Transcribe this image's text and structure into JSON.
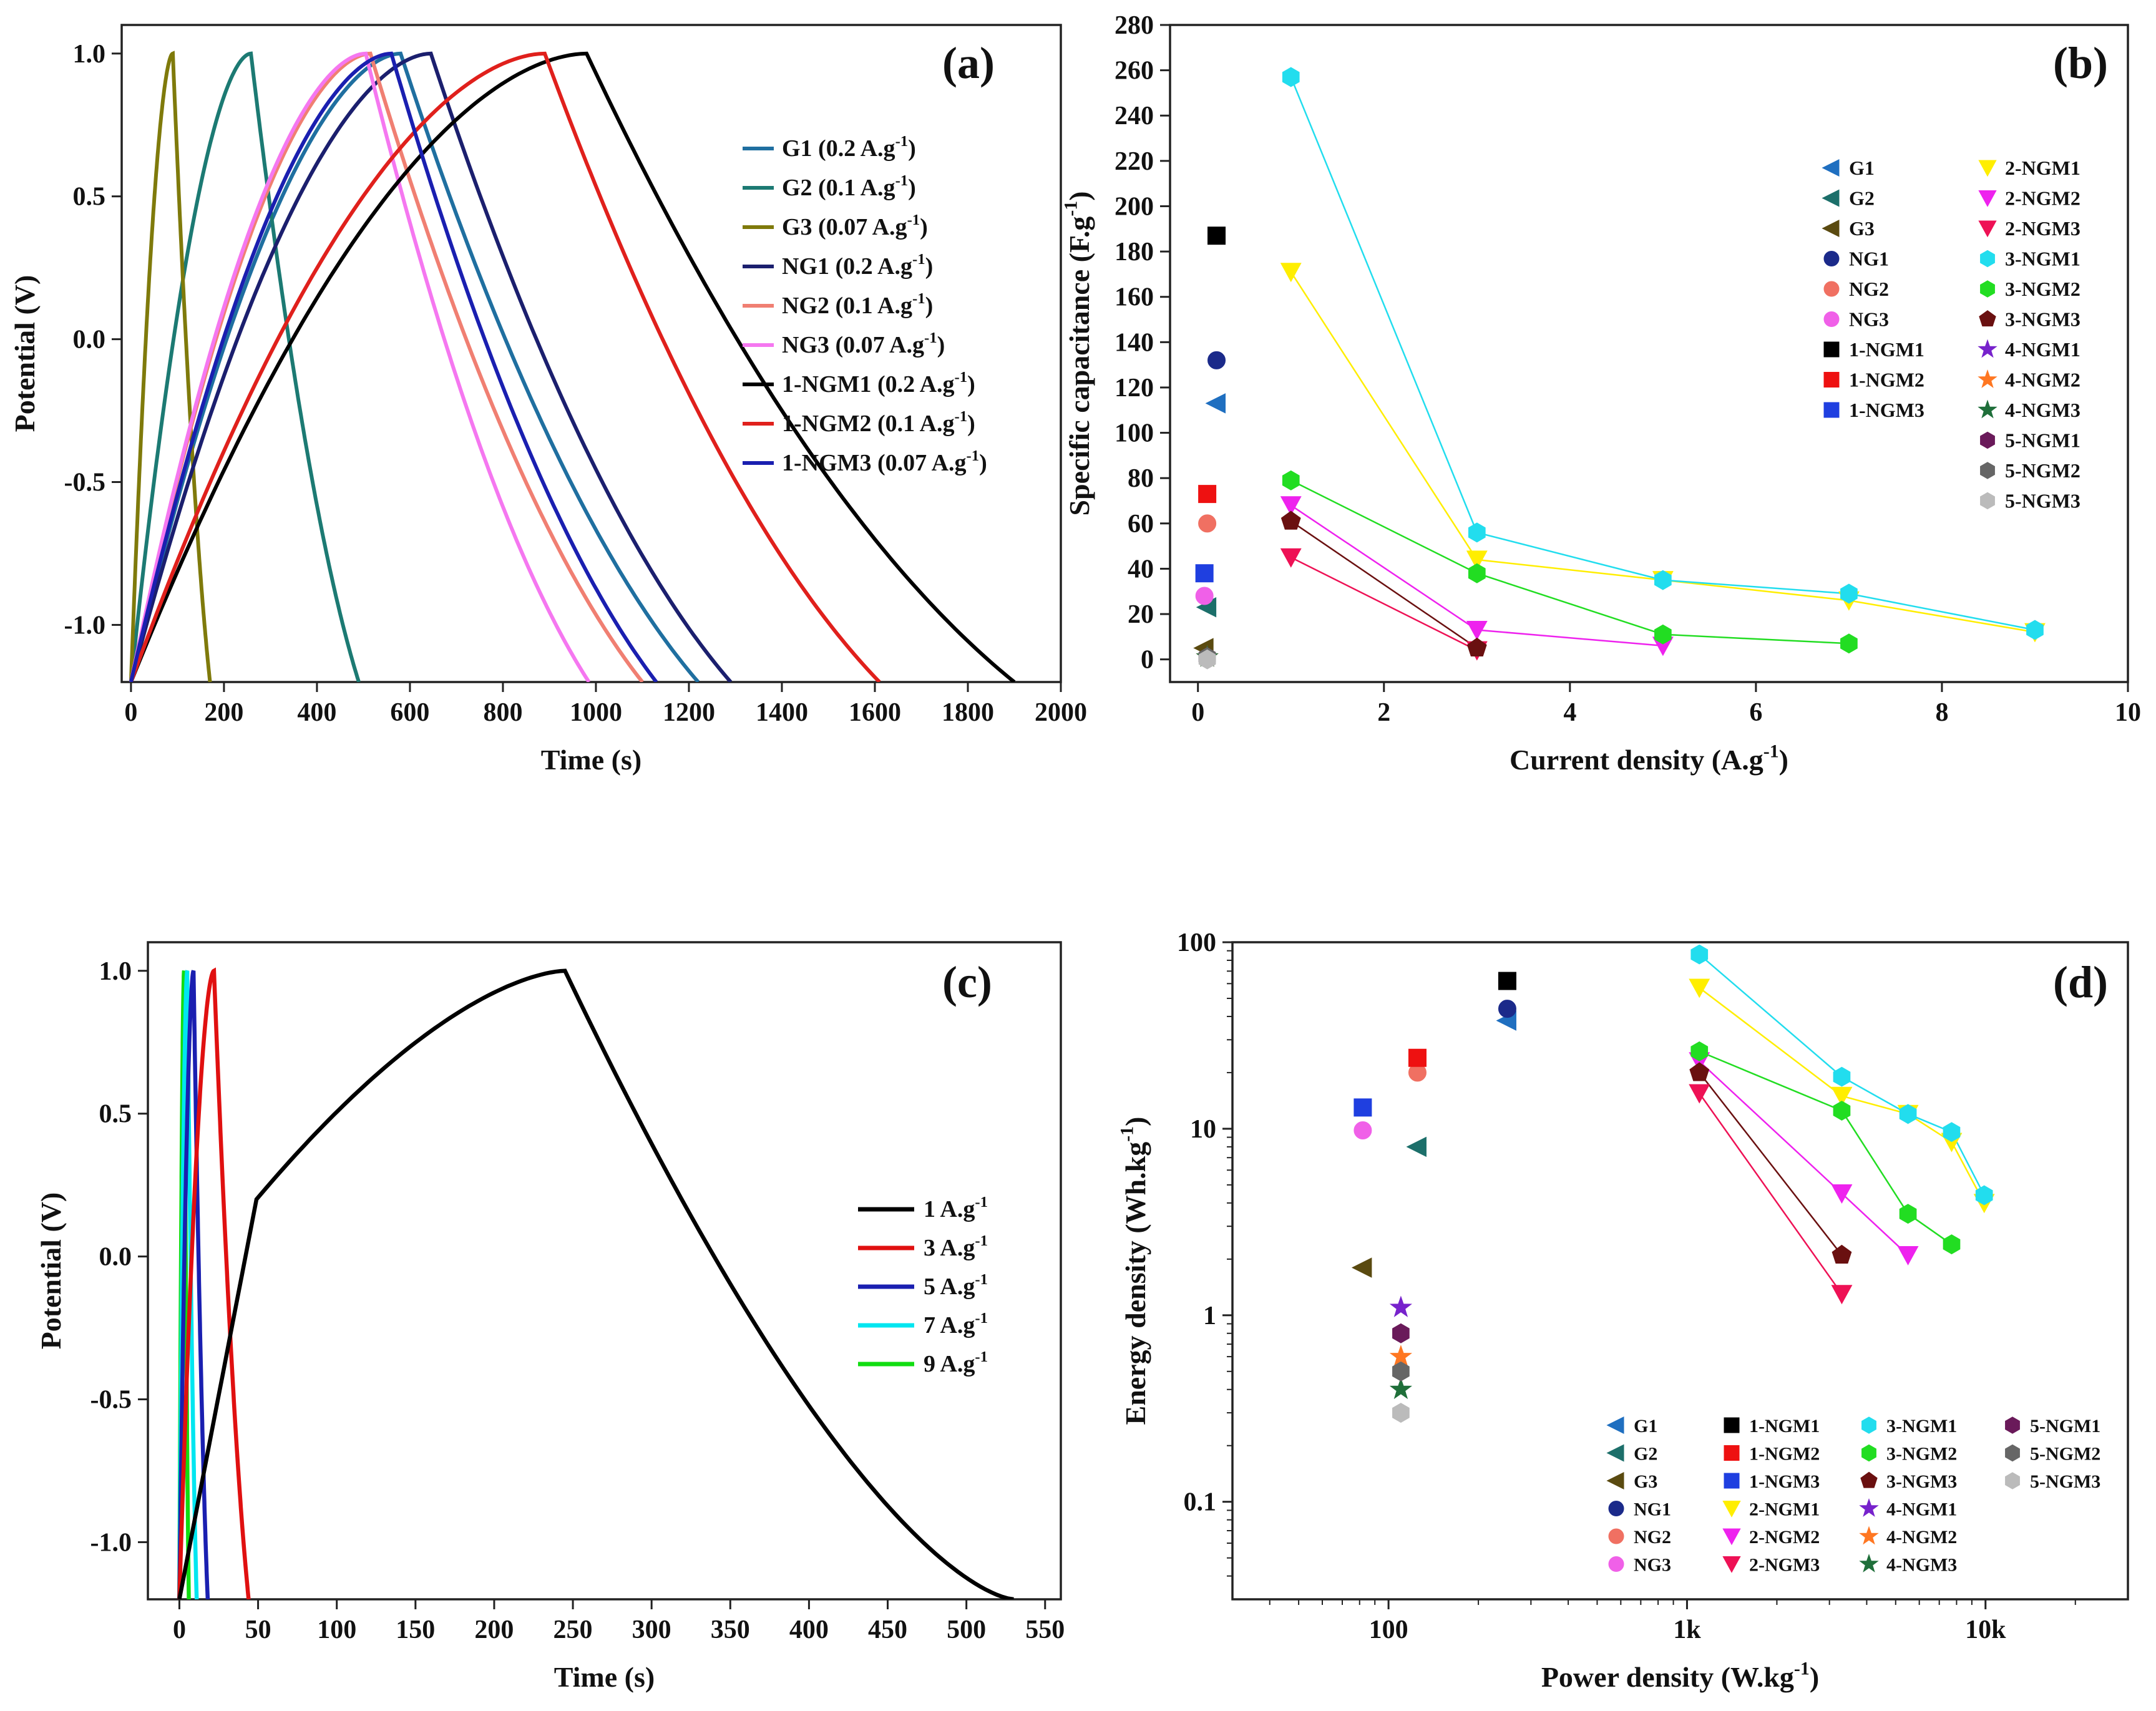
{
  "chart_data": [
    {
      "panel": "a",
      "type": "line",
      "xlabel": "Time (s)",
      "ylabel": "Potential (V)",
      "xlim": [
        -20,
        2000
      ],
      "ylim": [
        -1.2,
        1.1
      ],
      "xticks": [
        0,
        200,
        400,
        600,
        800,
        1000,
        1200,
        1400,
        1600,
        1800,
        2000
      ],
      "yticks": [
        -1.0,
        -0.5,
        0.0,
        0.5,
        1.0
      ],
      "ytick_labels": [
        "-1.0",
        "-0.5",
        "0.0",
        "0.5",
        "1.0"
      ],
      "legend_position": "center-right",
      "series": [
        {
          "name": "G1 (0.2 A.g",
          "legend_sup": "-1",
          "legend_tail": ")",
          "color": "#1f6fa0",
          "x": [
            0,
            580,
            1220
          ],
          "peak_y": 1.0
        },
        {
          "name": "G2 (0.1 A.g",
          "legend_sup": "-1",
          "legend_tail": ")",
          "color": "#1c7a73",
          "x": [
            0,
            258,
            490
          ],
          "peak_y": 1.0
        },
        {
          "name": "G3 (0.07 A.g",
          "legend_sup": "-1",
          "legend_tail": ")",
          "color": "#7f7a0b",
          "x": [
            0,
            90,
            170
          ],
          "peak_y": 1.0
        },
        {
          "name": "NG1 (0.2 A.g",
          "legend_sup": "-1",
          "legend_tail": ")",
          "color": "#1b1f6e",
          "x": [
            0,
            645,
            1290
          ],
          "peak_y": 1.0
        },
        {
          "name": "NG2 (0.1 A.g",
          "legend_sup": "-1",
          "legend_tail": ")",
          "color": "#f07f72",
          "x": [
            0,
            515,
            1100
          ],
          "peak_y": 1.0
        },
        {
          "name": "NG3 (0.07 A.g",
          "legend_sup": "-1",
          "legend_tail": ")",
          "color": "#f577f0",
          "x": [
            0,
            505,
            985
          ],
          "peak_y": 1.0
        },
        {
          "name": "1-NGM1 (0.2 A.g",
          "legend_sup": "-1",
          "legend_tail": ")",
          "color": "#000000",
          "x": [
            0,
            980,
            1900
          ],
          "peak_y": 1.0
        },
        {
          "name": "1-NGM2 (0.1 A.g",
          "legend_sup": "-1",
          "legend_tail": ")",
          "color": "#e0201c",
          "x": [
            0,
            890,
            1610
          ],
          "peak_y": 1.0
        },
        {
          "name": "1-NGM3 (0.07 A.g",
          "legend_sup": "-1",
          "legend_tail": ")",
          "color": "#1a1fb0",
          "x": [
            0,
            560,
            1130
          ],
          "peak_y": 1.0
        }
      ]
    },
    {
      "panel": "b",
      "type": "scatter",
      "xlabel": "Current density (A.g",
      "xlabel_sup": "-1",
      "xlabel_tail": ")",
      "ylabel": "Specific capacitance (F.g",
      "ylabel_sup": "-1",
      "ylabel_tail": ")",
      "xlim": [
        -0.3,
        10
      ],
      "ylim": [
        -10,
        280
      ],
      "xticks": [
        0,
        2,
        4,
        6,
        8,
        10
      ],
      "yticks": [
        0,
        20,
        40,
        60,
        80,
        100,
        120,
        140,
        160,
        180,
        200,
        220,
        240,
        260,
        280
      ],
      "legend_position": "top-right",
      "series": [
        {
          "name": "G1",
          "marker": "tri-left",
          "color": "#1f6fc0",
          "x": [
            0.2
          ],
          "y": [
            113
          ]
        },
        {
          "name": "G2",
          "marker": "tri-left",
          "color": "#1c6f6a",
          "x": [
            0.1
          ],
          "y": [
            23
          ]
        },
        {
          "name": "G3",
          "marker": "tri-left",
          "color": "#5a4a10",
          "x": [
            0.07
          ],
          "y": [
            5
          ]
        },
        {
          "name": "NG1",
          "marker": "circle",
          "color": "#1b2a8a",
          "x": [
            0.2
          ],
          "y": [
            132
          ]
        },
        {
          "name": "NG2",
          "marker": "circle",
          "color": "#f07062",
          "x": [
            0.1
          ],
          "y": [
            60
          ]
        },
        {
          "name": "NG3",
          "marker": "circle",
          "color": "#f060e8",
          "x": [
            0.07
          ],
          "y": [
            28
          ]
        },
        {
          "name": "1-NGM1",
          "marker": "square",
          "color": "#000000",
          "x": [
            0.2
          ],
          "y": [
            187
          ]
        },
        {
          "name": "1-NGM2",
          "marker": "square",
          "color": "#ee1111",
          "x": [
            0.1
          ],
          "y": [
            73
          ]
        },
        {
          "name": "1-NGM3",
          "marker": "square",
          "color": "#1f3fe0",
          "x": [
            0.07
          ],
          "y": [
            38
          ]
        },
        {
          "name": "2-NGM1",
          "marker": "tri-down",
          "color": "#ffee00",
          "x": [
            1,
            3,
            5,
            7,
            9
          ],
          "y": [
            171,
            44,
            35,
            26,
            12
          ],
          "line": true
        },
        {
          "name": "2-NGM2",
          "marker": "tri-down",
          "color": "#ee22ee",
          "x": [
            1,
            3,
            5
          ],
          "y": [
            68,
            13,
            6
          ],
          "line": true
        },
        {
          "name": "2-NGM3",
          "marker": "tri-down",
          "color": "#ee1155",
          "x": [
            1,
            3
          ],
          "y": [
            45,
            4
          ],
          "line": true
        },
        {
          "name": "3-NGM1",
          "marker": "hexagon",
          "color": "#22ddee",
          "x": [
            1,
            3,
            5,
            7,
            9
          ],
          "y": [
            257,
            56,
            35,
            29,
            13
          ],
          "line": true
        },
        {
          "name": "3-NGM2",
          "marker": "hexagon",
          "color": "#22dd22",
          "x": [
            1,
            3,
            5,
            7
          ],
          "y": [
            79,
            38,
            11,
            7
          ],
          "line": true
        },
        {
          "name": "3-NGM3",
          "marker": "pentagon",
          "color": "#6a1010",
          "x": [
            1,
            3
          ],
          "y": [
            61,
            5
          ],
          "line": true
        },
        {
          "name": "4-NGM1",
          "marker": "star",
          "color": "#7722cc",
          "x": [
            0.1
          ],
          "y": [
            1
          ]
        },
        {
          "name": "4-NGM2",
          "marker": "star",
          "color": "#ff7722",
          "x": [
            0.1
          ],
          "y": [
            1
          ]
        },
        {
          "name": "4-NGM3",
          "marker": "star",
          "color": "#1f6f3a",
          "x": [
            0.1
          ],
          "y": [
            1
          ]
        },
        {
          "name": "5-NGM1",
          "marker": "hexagon",
          "color": "#6a1a5a",
          "x": [
            0.1
          ],
          "y": [
            1
          ]
        },
        {
          "name": "5-NGM2",
          "marker": "hexagon",
          "color": "#666666",
          "x": [
            0.1
          ],
          "y": [
            1
          ]
        },
        {
          "name": "5-NGM3",
          "marker": "hexagon",
          "color": "#bbbbbb",
          "x": [
            0.1
          ],
          "y": [
            0
          ]
        }
      ]
    },
    {
      "panel": "c",
      "type": "line",
      "xlabel": "Time (s)",
      "ylabel": "Potential (V)",
      "xlim": [
        -20,
        560
      ],
      "ylim": [
        -1.2,
        1.1
      ],
      "xticks": [
        0,
        50,
        100,
        150,
        200,
        250,
        300,
        350,
        400,
        450,
        500,
        550
      ],
      "yticks": [
        -1.0,
        -0.5,
        0.0,
        0.5,
        1.0
      ],
      "ytick_labels": [
        "-1.0",
        "-0.5",
        "0.0",
        "0.5",
        "1.0"
      ],
      "legend_position": "center-right",
      "series": [
        {
          "name": "1 A.g",
          "legend_sup": "-1",
          "color": "#000000",
          "x": [
            0,
            245,
            530
          ],
          "peak_y": 1.0
        },
        {
          "name": "3 A.g",
          "legend_sup": "-1",
          "color": "#e01010",
          "x": [
            0,
            22,
            44
          ],
          "peak_y": 1.0
        },
        {
          "name": "5 A.g",
          "legend_sup": "-1",
          "color": "#1a1fb0",
          "x": [
            0,
            9,
            18
          ],
          "peak_y": 1.0
        },
        {
          "name": "7 A.g",
          "legend_sup": "-1",
          "color": "#00e6f0",
          "x": [
            0,
            5,
            11
          ],
          "peak_y": 1.0
        },
        {
          "name": "9 A.g",
          "legend_sup": "-1",
          "color": "#11dd11",
          "x": [
            0,
            3,
            6
          ],
          "peak_y": 1.0
        }
      ]
    },
    {
      "panel": "d",
      "type": "scatter",
      "scale": "log-log",
      "xlabel": "Power density (W.kg",
      "xlabel_sup": "-1",
      "xlabel_tail": ")",
      "ylabel": "Energy density (Wh.kg",
      "ylabel_sup": "-1",
      "ylabel_tail": ")",
      "xlim": [
        30,
        30000
      ],
      "ylim": [
        0.03,
        100
      ],
      "xticks": [
        100,
        1000,
        10000
      ],
      "xtick_labels": [
        "100",
        "1k",
        "10k"
      ],
      "yticks": [
        0.1,
        1,
        10,
        100
      ],
      "ytick_labels": [
        "0.1",
        "1",
        "10",
        "100"
      ],
      "legend_position": "bottom-right",
      "series": [
        {
          "name": "G1",
          "marker": "tri-left",
          "color": "#1f6fc0",
          "x": [
            250
          ],
          "y": [
            38
          ]
        },
        {
          "name": "G2",
          "marker": "tri-left",
          "color": "#1c6f6a",
          "x": [
            125
          ],
          "y": [
            8
          ]
        },
        {
          "name": "G3",
          "marker": "tri-left",
          "color": "#5a4a10",
          "x": [
            82
          ],
          "y": [
            1.8
          ]
        },
        {
          "name": "NG1",
          "marker": "circle",
          "color": "#1b2a8a",
          "x": [
            250
          ],
          "y": [
            44
          ]
        },
        {
          "name": "NG2",
          "marker": "circle",
          "color": "#f07062",
          "x": [
            125
          ],
          "y": [
            20
          ]
        },
        {
          "name": "NG3",
          "marker": "circle",
          "color": "#f060e8",
          "x": [
            82
          ],
          "y": [
            9.8
          ]
        },
        {
          "name": "1-NGM1",
          "marker": "square",
          "color": "#000000",
          "x": [
            250
          ],
          "y": [
            62
          ]
        },
        {
          "name": "1-NGM2",
          "marker": "square",
          "color": "#ee1111",
          "x": [
            125
          ],
          "y": [
            24
          ]
        },
        {
          "name": "1-NGM3",
          "marker": "square",
          "color": "#1f3fe0",
          "x": [
            82
          ],
          "y": [
            13
          ]
        },
        {
          "name": "2-NGM1",
          "marker": "tri-down",
          "color": "#ffee00",
          "x": [
            1100,
            3300,
            5500,
            7700,
            9900
          ],
          "y": [
            57,
            15,
            12,
            8.5,
            4
          ],
          "line": true
        },
        {
          "name": "2-NGM2",
          "marker": "tri-down",
          "color": "#ee22ee",
          "x": [
            1100,
            3300,
            5500
          ],
          "y": [
            23,
            4.5,
            2.1
          ],
          "line": true
        },
        {
          "name": "2-NGM3",
          "marker": "tri-down",
          "color": "#ee1155",
          "x": [
            1100,
            3300
          ],
          "y": [
            15.5,
            1.3
          ],
          "line": true
        },
        {
          "name": "3-NGM1",
          "marker": "hexagon",
          "color": "#22ddee",
          "x": [
            1100,
            3300,
            5500,
            7700,
            9900
          ],
          "y": [
            86,
            19,
            12,
            9.6,
            4.4
          ],
          "line": true
        },
        {
          "name": "3-NGM2",
          "marker": "hexagon",
          "color": "#22dd22",
          "x": [
            1100,
            3300,
            5500,
            7700
          ],
          "y": [
            26,
            12.5,
            3.5,
            2.4
          ],
          "line": true
        },
        {
          "name": "3-NGM3",
          "marker": "pentagon",
          "color": "#6a1010",
          "x": [
            1100,
            3300
          ],
          "y": [
            20,
            2.1
          ],
          "line": true
        },
        {
          "name": "4-NGM1",
          "marker": "star",
          "color": "#7722cc",
          "x": [
            110
          ],
          "y": [
            1.1
          ]
        },
        {
          "name": "4-NGM2",
          "marker": "star",
          "color": "#ff7722",
          "x": [
            110
          ],
          "y": [
            0.6
          ]
        },
        {
          "name": "4-NGM3",
          "marker": "star",
          "color": "#1f6f3a",
          "x": [
            110
          ],
          "y": [
            0.4
          ]
        },
        {
          "name": "5-NGM1",
          "marker": "hexagon",
          "color": "#6a1a5a",
          "x": [
            110
          ],
          "y": [
            0.8
          ]
        },
        {
          "name": "5-NGM2",
          "marker": "hexagon",
          "color": "#666666",
          "x": [
            110
          ],
          "y": [
            0.5
          ]
        },
        {
          "name": "5-NGM3",
          "marker": "hexagon",
          "color": "#bbbbbb",
          "x": [
            110
          ],
          "y": [
            0.3
          ]
        }
      ]
    }
  ],
  "panel_labels": [
    "(a)",
    "(b)",
    "(c)",
    "(d)"
  ]
}
